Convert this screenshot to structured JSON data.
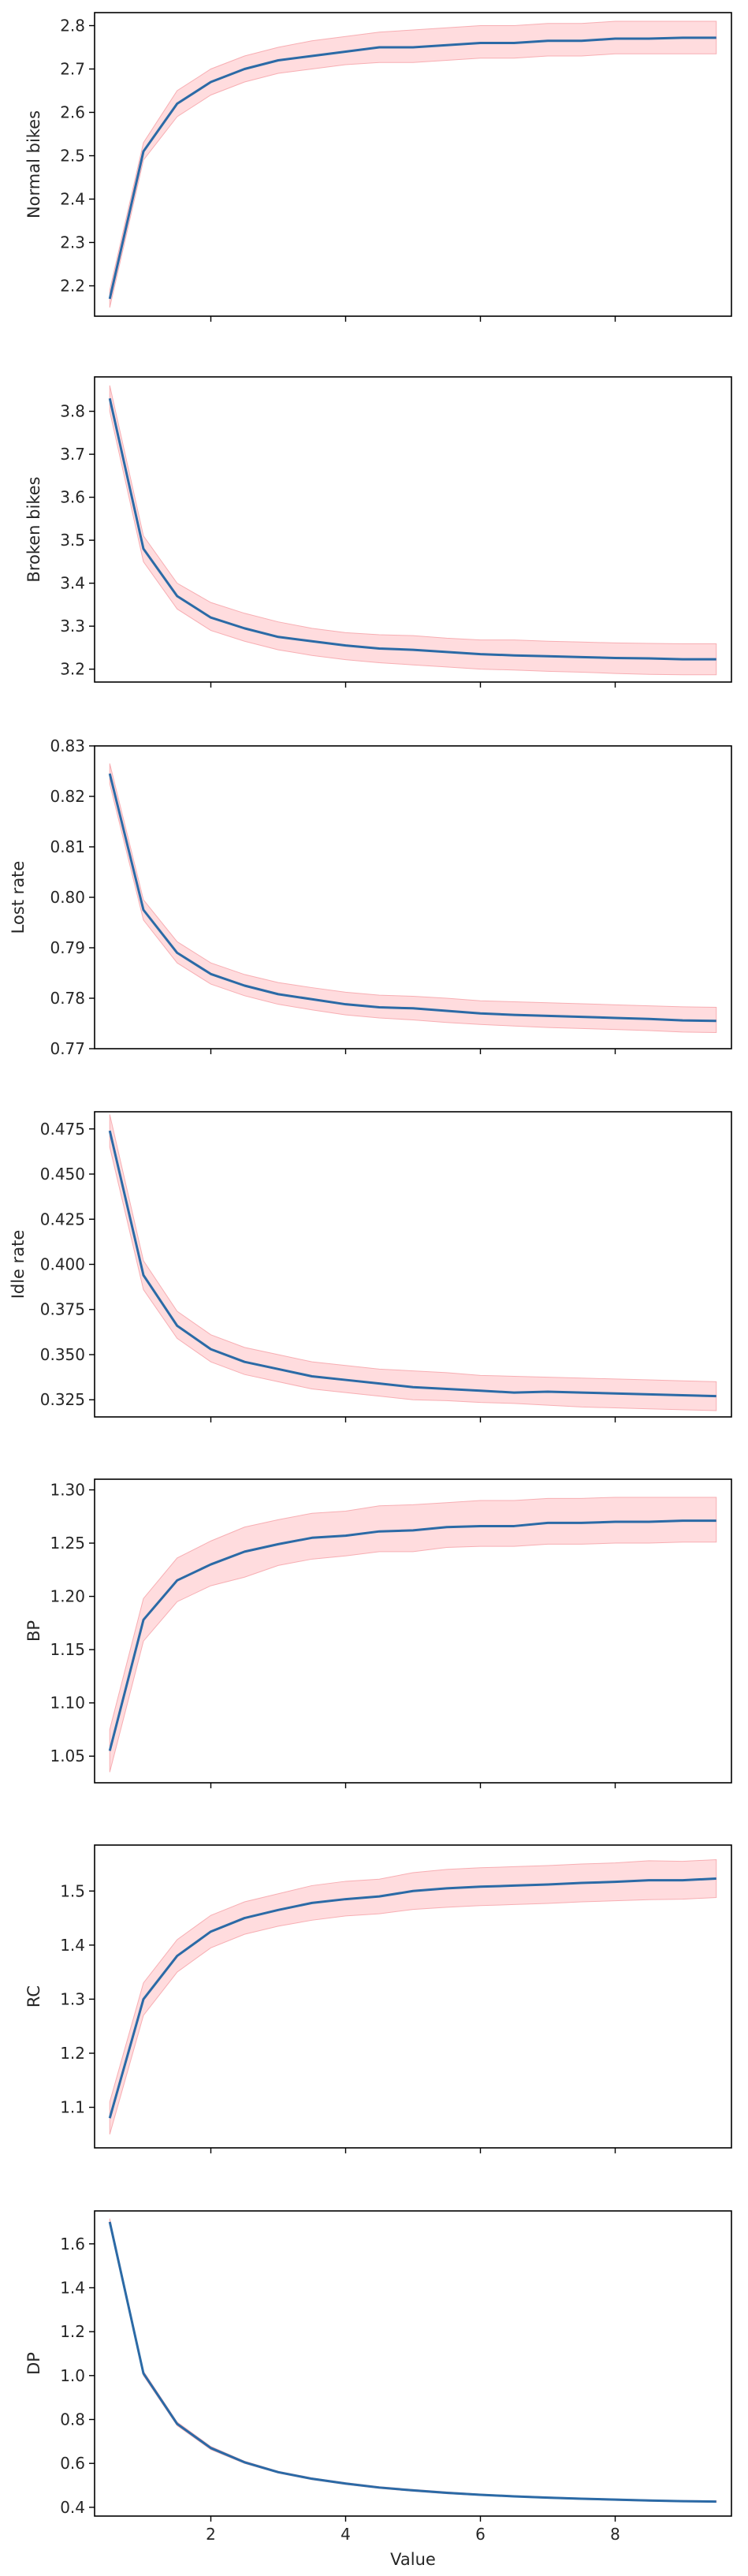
{
  "chart_data": [
    {
      "type": "line",
      "ylabel": "Normal bikes",
      "ylim": [
        2.13,
        2.83
      ],
      "yticks": [
        2.2,
        2.3,
        2.4,
        2.5,
        2.6,
        2.7,
        2.8
      ],
      "x": [
        0.5,
        1,
        1.5,
        2,
        2.5,
        3,
        3.5,
        4,
        4.5,
        5,
        5.5,
        6,
        6.5,
        7,
        7.5,
        8,
        8.5,
        9,
        9.5
      ],
      "series": [
        {
          "values": [
            2.17,
            2.51,
            2.62,
            2.67,
            2.7,
            2.72,
            2.73,
            2.74,
            2.75,
            2.75,
            2.755,
            2.76,
            2.76,
            2.765,
            2.765,
            2.77,
            2.77,
            2.772,
            2.772
          ],
          "lower": [
            2.15,
            2.49,
            2.59,
            2.64,
            2.67,
            2.69,
            2.7,
            2.71,
            2.715,
            2.715,
            2.72,
            2.725,
            2.725,
            2.73,
            2.73,
            2.735,
            2.735,
            2.735,
            2.735
          ],
          "upper": [
            2.19,
            2.53,
            2.65,
            2.7,
            2.73,
            2.75,
            2.765,
            2.775,
            2.785,
            2.79,
            2.795,
            2.8,
            2.8,
            2.805,
            2.805,
            2.81,
            2.81,
            2.81,
            2.81
          ]
        }
      ]
    },
    {
      "type": "line",
      "ylabel": "Broken bikes",
      "ylim": [
        3.17,
        3.88
      ],
      "yticks": [
        3.2,
        3.3,
        3.4,
        3.5,
        3.6,
        3.7,
        3.8
      ],
      "x": [
        0.5,
        1,
        1.5,
        2,
        2.5,
        3,
        3.5,
        4,
        4.5,
        5,
        5.5,
        6,
        6.5,
        7,
        7.5,
        8,
        8.5,
        9,
        9.5
      ],
      "series": [
        {
          "values": [
            3.83,
            3.48,
            3.37,
            3.32,
            3.295,
            3.275,
            3.265,
            3.255,
            3.248,
            3.245,
            3.24,
            3.235,
            3.232,
            3.23,
            3.228,
            3.226,
            3.225,
            3.223,
            3.223
          ],
          "lower": [
            3.8,
            3.45,
            3.34,
            3.29,
            3.265,
            3.245,
            3.232,
            3.222,
            3.215,
            3.21,
            3.205,
            3.2,
            3.198,
            3.195,
            3.193,
            3.19,
            3.188,
            3.187,
            3.187
          ],
          "upper": [
            3.86,
            3.51,
            3.4,
            3.355,
            3.33,
            3.31,
            3.295,
            3.285,
            3.28,
            3.278,
            3.272,
            3.268,
            3.268,
            3.265,
            3.263,
            3.261,
            3.26,
            3.259,
            3.259
          ]
        }
      ]
    },
    {
      "type": "line",
      "ylabel": "Lost rate",
      "ylim": [
        0.77,
        0.83
      ],
      "yticks": [
        0.77,
        0.78,
        0.79,
        0.8,
        0.81,
        0.82,
        0.83
      ],
      "x": [
        0.5,
        1,
        1.5,
        2,
        2.5,
        3,
        3.5,
        4,
        4.5,
        5,
        5.5,
        6,
        6.5,
        7,
        7.5,
        8,
        8.5,
        9,
        9.5
      ],
      "series": [
        {
          "values": [
            0.8245,
            0.7975,
            0.789,
            0.7848,
            0.7825,
            0.7808,
            0.7798,
            0.7788,
            0.7782,
            0.778,
            0.7775,
            0.777,
            0.7767,
            0.7765,
            0.7763,
            0.7761,
            0.7759,
            0.7756,
            0.7755
          ],
          "lower": [
            0.8225,
            0.7955,
            0.787,
            0.7828,
            0.7805,
            0.7788,
            0.7777,
            0.7767,
            0.7761,
            0.7757,
            0.7752,
            0.7748,
            0.7745,
            0.7742,
            0.774,
            0.7738,
            0.7736,
            0.7733,
            0.7732
          ],
          "upper": [
            0.8265,
            0.7995,
            0.7912,
            0.787,
            0.7847,
            0.7831,
            0.7821,
            0.7812,
            0.7806,
            0.7804,
            0.78,
            0.7795,
            0.7793,
            0.7791,
            0.7789,
            0.7787,
            0.7785,
            0.7783,
            0.7782
          ]
        }
      ]
    },
    {
      "type": "line",
      "ylabel": "Idle rate",
      "ylim": [
        0.3155,
        0.4845
      ],
      "yticks": [
        0.325,
        0.35,
        0.375,
        0.4,
        0.425,
        0.45,
        0.475
      ],
      "x": [
        0.5,
        1,
        1.5,
        2,
        2.5,
        3,
        3.5,
        4,
        4.5,
        5,
        5.5,
        6,
        6.5,
        7,
        7.5,
        8,
        8.5,
        9,
        9.5
      ],
      "series": [
        {
          "values": [
            0.474,
            0.394,
            0.366,
            0.353,
            0.346,
            0.342,
            0.338,
            0.336,
            0.334,
            0.332,
            0.331,
            0.33,
            0.329,
            0.3295,
            0.329,
            0.3285,
            0.328,
            0.3275,
            0.327
          ],
          "lower": [
            0.465,
            0.386,
            0.359,
            0.346,
            0.339,
            0.335,
            0.331,
            0.329,
            0.327,
            0.325,
            0.3245,
            0.3235,
            0.323,
            0.322,
            0.321,
            0.3205,
            0.32,
            0.3195,
            0.319
          ],
          "upper": [
            0.483,
            0.402,
            0.374,
            0.361,
            0.354,
            0.35,
            0.346,
            0.344,
            0.342,
            0.341,
            0.34,
            0.3385,
            0.338,
            0.3375,
            0.337,
            0.3365,
            0.336,
            0.3355,
            0.335
          ]
        }
      ]
    },
    {
      "type": "line",
      "ylabel": "BP",
      "ylim": [
        1.025,
        1.31
      ],
      "yticks": [
        1.05,
        1.1,
        1.15,
        1.2,
        1.25,
        1.3
      ],
      "x": [
        0.5,
        1,
        1.5,
        2,
        2.5,
        3,
        3.5,
        4,
        4.5,
        5,
        5.5,
        6,
        6.5,
        7,
        7.5,
        8,
        8.5,
        9,
        9.5
      ],
      "series": [
        {
          "values": [
            1.055,
            1.178,
            1.215,
            1.23,
            1.242,
            1.249,
            1.255,
            1.257,
            1.261,
            1.262,
            1.265,
            1.266,
            1.266,
            1.269,
            1.269,
            1.27,
            1.27,
            1.271,
            1.271
          ],
          "lower": [
            1.035,
            1.158,
            1.195,
            1.21,
            1.218,
            1.229,
            1.235,
            1.238,
            1.242,
            1.242,
            1.246,
            1.247,
            1.247,
            1.249,
            1.249,
            1.25,
            1.25,
            1.251,
            1.251
          ],
          "upper": [
            1.075,
            1.198,
            1.236,
            1.252,
            1.265,
            1.272,
            1.278,
            1.28,
            1.285,
            1.286,
            1.288,
            1.29,
            1.29,
            1.292,
            1.292,
            1.293,
            1.293,
            1.293,
            1.293
          ]
        }
      ]
    },
    {
      "type": "line",
      "ylabel": "RC",
      "ylim": [
        1.025,
        1.585
      ],
      "yticks": [
        1.1,
        1.2,
        1.3,
        1.4,
        1.5
      ],
      "x": [
        0.5,
        1,
        1.5,
        2,
        2.5,
        3,
        3.5,
        4,
        4.5,
        5,
        5.5,
        6,
        6.5,
        7,
        7.5,
        8,
        8.5,
        9,
        9.5
      ],
      "series": [
        {
          "values": [
            1.08,
            1.3,
            1.38,
            1.425,
            1.45,
            1.465,
            1.478,
            1.485,
            1.49,
            1.5,
            1.505,
            1.508,
            1.51,
            1.512,
            1.515,
            1.517,
            1.52,
            1.52,
            1.523
          ],
          "lower": [
            1.05,
            1.27,
            1.35,
            1.395,
            1.42,
            1.435,
            1.446,
            1.454,
            1.458,
            1.466,
            1.47,
            1.473,
            1.475,
            1.477,
            1.48,
            1.482,
            1.484,
            1.485,
            1.488
          ],
          "upper": [
            1.11,
            1.33,
            1.41,
            1.455,
            1.48,
            1.495,
            1.51,
            1.518,
            1.522,
            1.534,
            1.54,
            1.543,
            1.545,
            1.547,
            1.55,
            1.552,
            1.556,
            1.555,
            1.558
          ]
        }
      ]
    },
    {
      "type": "line",
      "ylabel": "DP",
      "xlabel": "Value",
      "ylim": [
        0.36,
        1.75
      ],
      "yticks": [
        0.4,
        0.6,
        0.8,
        1.0,
        1.2,
        1.4,
        1.6
      ],
      "xticks": [
        2,
        4,
        6,
        8
      ],
      "x": [
        0.5,
        1,
        1.5,
        2,
        2.5,
        3,
        3.5,
        4,
        4.5,
        5,
        5.5,
        6,
        6.5,
        7,
        7.5,
        8,
        8.5,
        9,
        9.5
      ],
      "series": [
        {
          "values": [
            1.7,
            1.01,
            0.78,
            0.67,
            0.605,
            0.56,
            0.53,
            0.508,
            0.49,
            0.477,
            0.466,
            0.457,
            0.45,
            0.444,
            0.439,
            0.435,
            0.431,
            0.428,
            0.426
          ],
          "lower": [
            1.685,
            1.0,
            0.772,
            0.663,
            0.6,
            0.556,
            0.526,
            0.504,
            0.486,
            0.473,
            0.462,
            0.454,
            0.447,
            0.441,
            0.436,
            0.432,
            0.428,
            0.425,
            0.423
          ],
          "upper": [
            1.715,
            1.02,
            0.788,
            0.677,
            0.61,
            0.564,
            0.534,
            0.512,
            0.494,
            0.481,
            0.47,
            0.46,
            0.453,
            0.447,
            0.442,
            0.438,
            0.434,
            0.431,
            0.429
          ]
        }
      ]
    }
  ],
  "colors": {
    "line": "#2b6aa6",
    "band": "#ffd6d8",
    "band_edge": "#f7aeb3",
    "axis": "#000000"
  }
}
